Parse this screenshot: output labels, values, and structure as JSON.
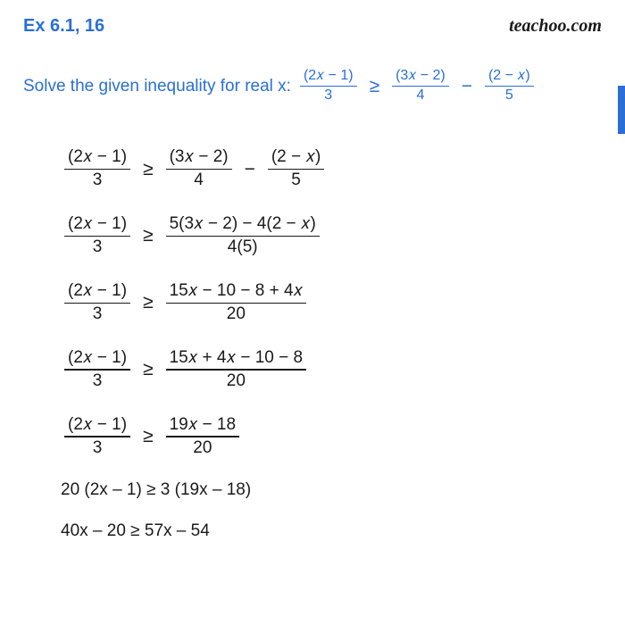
{
  "header": {
    "ex_label": "Ex 6.1, 16",
    "brand": "teachoo.com"
  },
  "problem": {
    "prompt": "Solve the given inequality for real x: ",
    "lhs": {
      "num": "(2𝑥 − 1)",
      "den": "3"
    },
    "op1": "≥",
    "rhs1": {
      "num": "(3𝑥 − 2)",
      "den": "4"
    },
    "minus": "−",
    "rhs2": {
      "num": "(2 − 𝑥)",
      "den": "5"
    }
  },
  "colors": {
    "accent": "#2a6fd6",
    "text": "#1a1a1a",
    "bg": "#ffffff"
  },
  "steps": [
    {
      "lhs": {
        "num": "(2𝑥 − 1)",
        "den": "3"
      },
      "op": "≥",
      "rhs_parts": [
        {
          "type": "frac",
          "num": "(3𝑥 − 2)",
          "den": "4"
        },
        {
          "type": "op",
          "text": "−"
        },
        {
          "type": "frac",
          "num": "(2 − 𝑥)",
          "den": "5"
        }
      ]
    },
    {
      "lhs": {
        "num": "(2𝑥 − 1)",
        "den": "3"
      },
      "op": "≥",
      "rhs_parts": [
        {
          "type": "frac",
          "num": "5(3𝑥 − 2) − 4(2 − 𝑥)",
          "den": "4(5)"
        }
      ]
    },
    {
      "lhs": {
        "num": "(2𝑥 − 1)",
        "den": "3"
      },
      "op": "≥",
      "rhs_parts": [
        {
          "type": "frac",
          "num": "15𝑥 − 10 − 8 + 4𝑥",
          "den": "20"
        }
      ]
    },
    {
      "lhs": {
        "num": "(2𝑥 − 1)",
        "den": "3"
      },
      "op": "≥",
      "rhs_parts": [
        {
          "type": "frac",
          "num": "15𝑥 + 4𝑥 − 10 − 8",
          "den": "20"
        }
      ]
    },
    {
      "lhs": {
        "num": "(2𝑥 − 1)",
        "den": "3"
      },
      "op": "≥",
      "rhs_parts": [
        {
          "type": "frac",
          "num": "19𝑥 − 18",
          "den": "20"
        }
      ]
    }
  ],
  "plain_steps": [
    "20 (2x – 1) ≥ 3 (19x – 18)",
    "40x – 20  ≥  57x – 54"
  ]
}
